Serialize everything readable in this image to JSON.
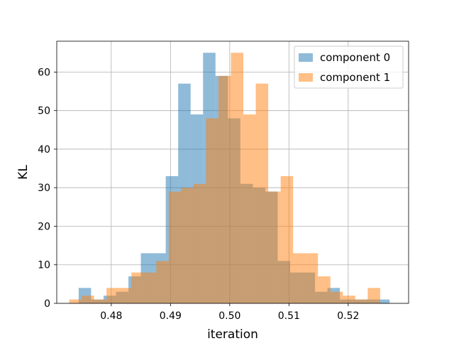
{
  "chart_data": {
    "type": "bar",
    "subtype": "overlapping-histogram",
    "title": "",
    "xlabel": "iteration",
    "ylabel": "KL",
    "xlim": [
      0.4708,
      0.5302
    ],
    "ylim": [
      0,
      68
    ],
    "xticks": [
      0.48,
      0.49,
      0.5,
      0.51,
      0.52
    ],
    "xtick_labels": [
      "0.48",
      "0.49",
      "0.50",
      "0.51",
      "0.52"
    ],
    "yticks": [
      0,
      10,
      20,
      30,
      40,
      50,
      60
    ],
    "ytick_labels": [
      "0",
      "10",
      "20",
      "30",
      "40",
      "50",
      "60"
    ],
    "grid": true,
    "legend_position": "top-right",
    "series": [
      {
        "name": "component 0",
        "color": "#1f77b4",
        "opacity": 0.5,
        "bin_edges": [
          0.4745,
          0.4766,
          0.4787,
          0.4808,
          0.4829,
          0.485,
          0.4871,
          0.4892,
          0.4913,
          0.4934,
          0.4955,
          0.4976,
          0.4997,
          0.5018,
          0.5039,
          0.506,
          0.5081,
          0.5102,
          0.5123,
          0.5144,
          0.5165,
          0.5186,
          0.5207,
          0.5228,
          0.5249,
          0.527
        ],
        "values": [
          4,
          1,
          2,
          3,
          7,
          13,
          13,
          33,
          57,
          49,
          65,
          59,
          48,
          31,
          30,
          29,
          11,
          8,
          8,
          3,
          4,
          1,
          1,
          1,
          1
        ]
      },
      {
        "name": "component 1",
        "color": "#ff7f0e",
        "opacity": 0.5,
        "bin_edges": [
          0.4729,
          0.475,
          0.4771,
          0.4792,
          0.4813,
          0.4834,
          0.4855,
          0.4876,
          0.4897,
          0.4918,
          0.4939,
          0.496,
          0.4981,
          0.5002,
          0.5023,
          0.5044,
          0.5065,
          0.5086,
          0.5107,
          0.5128,
          0.5149,
          0.517,
          0.5191,
          0.5212,
          0.5233,
          0.5254
        ],
        "values": [
          1,
          2,
          1,
          4,
          4,
          8,
          8,
          11,
          29,
          30,
          31,
          48,
          59,
          65,
          49,
          57,
          29,
          33,
          13,
          13,
          7,
          3,
          2,
          1,
          4
        ]
      }
    ]
  }
}
